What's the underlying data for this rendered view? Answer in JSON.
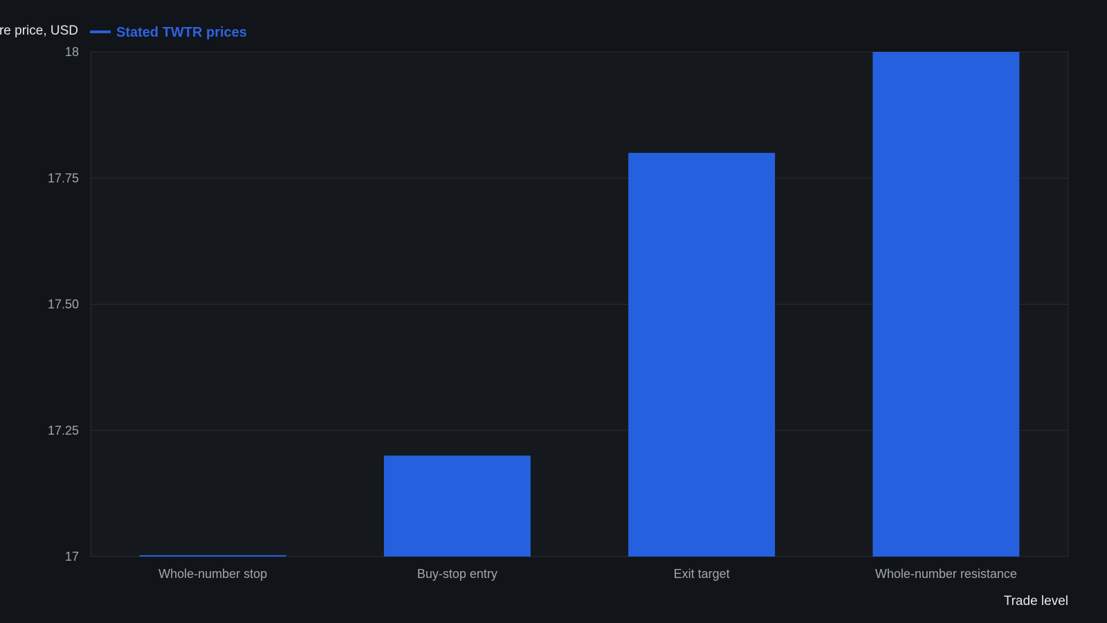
{
  "chart_data": {
    "type": "bar",
    "title": "",
    "categories": [
      "Whole-number stop",
      "Buy-stop entry",
      "Exit target",
      "Whole-number resistance"
    ],
    "series": [
      {
        "name": "Stated TWTR prices",
        "values": [
          17.0,
          17.2,
          17.8,
          18.0
        ]
      }
    ],
    "xlabel": "Trade level",
    "ylabel": "Share price, USD",
    "ylim": [
      17,
      18
    ],
    "yticks": [
      "17",
      "17.25",
      "17.50",
      "17.75",
      "18"
    ],
    "grid": true,
    "legend_position": "top-left",
    "colors": {
      "background": "#111418",
      "plot_background": "#15181d",
      "bar": "#2560de",
      "grid": "#2a2e35",
      "axis_text": "#a1a7b0",
      "title_text": "#e6e8eb"
    }
  }
}
